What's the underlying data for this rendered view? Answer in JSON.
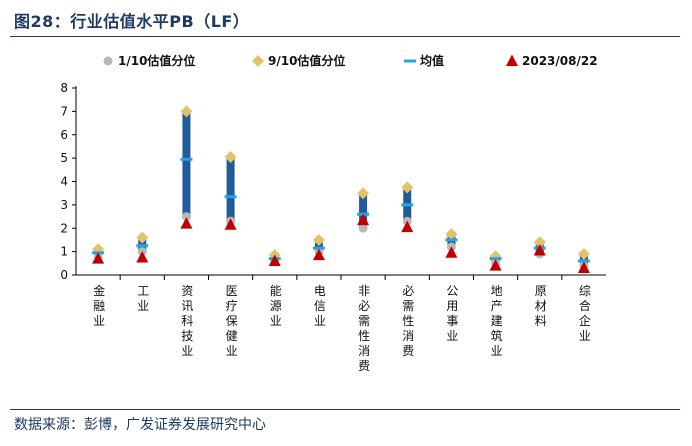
{
  "header": {
    "title": "图28：行业估值水平PB（LF）"
  },
  "footer": {
    "source": "数据来源：彭博，广发证券发展研究中心"
  },
  "colors": {
    "range_bar": "#1f5c99",
    "p10": "#b8b8b8",
    "p90": "#e2c36a",
    "mean": "#29a3e0",
    "current": "#c00000",
    "axis": "#000000",
    "title": "#1f3a63"
  },
  "chart_data": {
    "type": "range",
    "title": "",
    "xlabel": "",
    "ylabel": "",
    "ylim": [
      0,
      8
    ],
    "yticks": [
      "0",
      "1",
      "2",
      "3",
      "4",
      "5",
      "6",
      "7",
      "8"
    ],
    "grid": false,
    "legend_position": "top",
    "categories": [
      "金融业",
      "工业",
      "资讯科技业",
      "医疗保健业",
      "能源业",
      "电信业",
      "非必需性消费",
      "必需性消费",
      "公用事业",
      "地产建筑业",
      "原材料",
      "综合企业"
    ],
    "series": [
      {
        "name": "1/10估值分位",
        "marker": "circle",
        "values": [
          0.8,
          1.0,
          2.5,
          2.3,
          0.6,
          1.0,
          2.0,
          2.3,
          1.2,
          0.5,
          0.9,
          0.4
        ]
      },
      {
        "name": "9/10估值分位",
        "marker": "diamond",
        "values": [
          1.1,
          1.6,
          7.0,
          5.05,
          0.85,
          1.5,
          3.5,
          3.75,
          1.75,
          0.8,
          1.4,
          0.9
        ]
      },
      {
        "name": "均值",
        "marker": "dash",
        "values": [
          0.95,
          1.25,
          4.95,
          3.35,
          0.7,
          1.15,
          2.6,
          3.0,
          1.5,
          0.7,
          1.15,
          0.6
        ]
      },
      {
        "name": "2023/08/22",
        "marker": "triangle",
        "values": [
          0.7,
          0.75,
          2.2,
          2.15,
          0.6,
          0.85,
          2.35,
          2.05,
          0.95,
          0.4,
          1.05,
          0.3
        ]
      }
    ]
  }
}
